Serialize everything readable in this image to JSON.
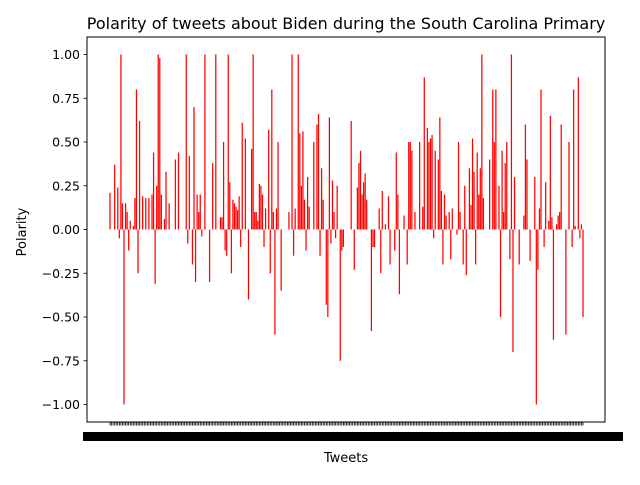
{
  "chart_data": {
    "type": "bar",
    "title": "Polarity of tweets about Biden during the South Carolina Primary",
    "xlabel": "Tweets",
    "ylabel": "Polarity",
    "ylim": [
      -1.1,
      1.1
    ],
    "yticks": [
      1.0,
      0.75,
      0.5,
      0.25,
      0.0,
      -0.25,
      -0.5,
      -0.75,
      -1.0
    ],
    "ytick_labels": [
      "1.00",
      "0.75",
      "0.50",
      "0.25",
      "0.00",
      "−0.25",
      "−0.50",
      "−0.75",
      "−1.00"
    ],
    "bar_color": "#ff0000",
    "grid": false,
    "x_tick_labels_note": "x tick labels are overlapping and illegible",
    "values": [
      0.21,
      0.0,
      0.0,
      0.37,
      0.0,
      0.24,
      -0.05,
      1.0,
      0.15,
      -1.0,
      0.15,
      0.1,
      -0.12,
      0.05,
      0.0,
      0.02,
      0.18,
      0.8,
      -0.25,
      0.62,
      0.0,
      0.19,
      0.0,
      0.18,
      0.0,
      0.18,
      0.0,
      0.2,
      0.44,
      -0.31,
      0.25,
      1.0,
      0.98,
      0.2,
      0.0,
      0.06,
      0.33,
      0.0,
      0.15,
      0.0,
      0.0,
      0.0,
      0.4,
      0.0,
      0.44,
      0.0,
      0.0,
      0.0,
      0.0,
      1.0,
      -0.08,
      0.42,
      0.0,
      -0.2,
      0.7,
      -0.3,
      0.2,
      0.1,
      0.2,
      -0.04,
      0.0,
      1.0,
      0.0,
      0.0,
      -0.3,
      0.0,
      0.38,
      0.0,
      1.0,
      0.0,
      0.0,
      0.07,
      0.07,
      0.5,
      -0.12,
      -0.15,
      1.0,
      0.27,
      -0.25,
      0.17,
      0.15,
      0.13,
      0.11,
      0.19,
      -0.1,
      0.61,
      0.0,
      0.52,
      0.0,
      -0.4,
      0.0,
      0.46,
      1.0,
      0.1,
      0.1,
      0.05,
      0.26,
      0.25,
      0.2,
      -0.1,
      0.12,
      0.0,
      0.57,
      -0.25,
      0.8,
      0.1,
      -0.6,
      0.12,
      0.5,
      0.0,
      -0.35,
      0.0,
      0.0,
      0.0,
      0.0,
      0.1,
      0.0,
      1.0,
      -0.15,
      0.12,
      0.0,
      1.0,
      0.55,
      0.25,
      0.56,
      0.17,
      -0.12,
      0.3,
      0.13,
      0.0,
      0.0,
      0.5,
      0.0,
      0.6,
      0.66,
      -0.15,
      0.35,
      0.17,
      0.0,
      -0.43,
      -0.5,
      0.64,
      -0.08,
      0.28,
      0.1,
      -0.05,
      0.25,
      0.0,
      -0.75,
      -0.12,
      -0.1,
      0.0,
      0.0,
      0.0,
      0.0,
      0.62,
      0.0,
      -0.23,
      0.0,
      0.24,
      0.38,
      0.45,
      0.2,
      0.27,
      0.32,
      0.17,
      0.0,
      0.0,
      -0.58,
      -0.1,
      -0.1,
      0.0,
      0.0,
      0.12,
      -0.25,
      0.22,
      0.0,
      0.03,
      0.0,
      0.19,
      -0.2,
      0.0,
      0.0,
      -0.12,
      0.44,
      0.2,
      -0.37,
      0.0,
      0.0,
      0.08,
      0.0,
      -0.2,
      0.5,
      0.5,
      0.45,
      0.0,
      0.1,
      0.0,
      0.0,
      0.5,
      0.0,
      0.13,
      0.87,
      0.0,
      0.58,
      0.5,
      0.52,
      0.54,
      -0.05,
      0.45,
      0.0,
      0.4,
      0.64,
      0.22,
      -0.2,
      0.2,
      0.08,
      0.0,
      0.1,
      -0.17,
      0.12,
      0.0,
      0.0,
      -0.03,
      0.5,
      0.1,
      0.0,
      -0.2,
      0.25,
      -0.26,
      0.0,
      0.35,
      0.14,
      0.52,
      0.33,
      -0.2,
      0.44,
      0.2,
      0.35,
      1.0,
      0.18,
      0.0,
      0.0,
      0.0,
      0.4,
      0.0,
      0.8,
      0.5,
      0.8,
      0.0,
      0.25,
      -0.5,
      0.45,
      0.1,
      0.38,
      0.5,
      0.0,
      -0.17,
      1.0,
      -0.7,
      0.3,
      0.0,
      0.0,
      -0.2,
      0.0,
      0.0,
      0.08,
      0.6,
      0.4,
      0.0,
      -0.18,
      0.0,
      0.0,
      0.3,
      -1.0,
      -0.23,
      0.12,
      0.8,
      0.0,
      -0.1,
      0.27,
      0.0,
      0.05,
      0.65,
      0.07,
      -0.63,
      0.0,
      0.03,
      0.08,
      0.1,
      0.6,
      0.0,
      0.0,
      -0.6,
      0.0,
      0.5,
      0.0,
      -0.1,
      0.8,
      0.02,
      0.0,
      0.87,
      -0.05,
      0.03,
      -0.5
    ]
  }
}
